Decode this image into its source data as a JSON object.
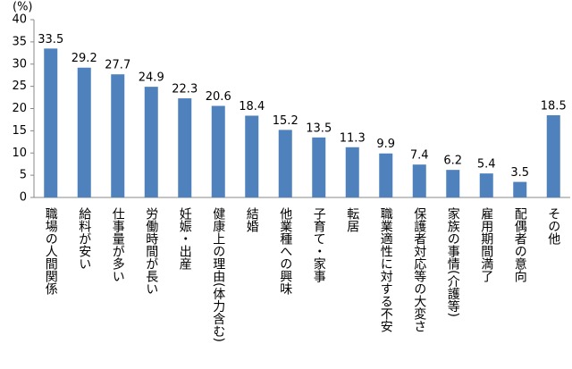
{
  "chart_data": {
    "type": "bar",
    "y_label": "(%)",
    "categories": [
      "職場の人間関係",
      "給料が安い",
      "仕事量が多い",
      "労働時間が長い",
      "妊娠・出産",
      "健康上の理由(体力含む)",
      "結婚",
      "他業種への興味",
      "子育て・家事",
      "転居",
      "職業適性に対する不安",
      "保護者対応等の大変さ",
      "家族の事情(介護等)",
      "雇用期間満了",
      "配偶者の意向",
      "その他"
    ],
    "values": [
      33.5,
      29.2,
      27.7,
      24.9,
      22.3,
      20.6,
      18.4,
      15.2,
      13.5,
      11.3,
      9.9,
      7.4,
      6.2,
      5.4,
      3.5,
      18.5
    ],
    "color": "#4f81bd",
    "ylim": [
      0,
      40
    ],
    "yticks": [
      0,
      5,
      10,
      15,
      20,
      25,
      30,
      35,
      40
    ],
    "grid": false
  }
}
